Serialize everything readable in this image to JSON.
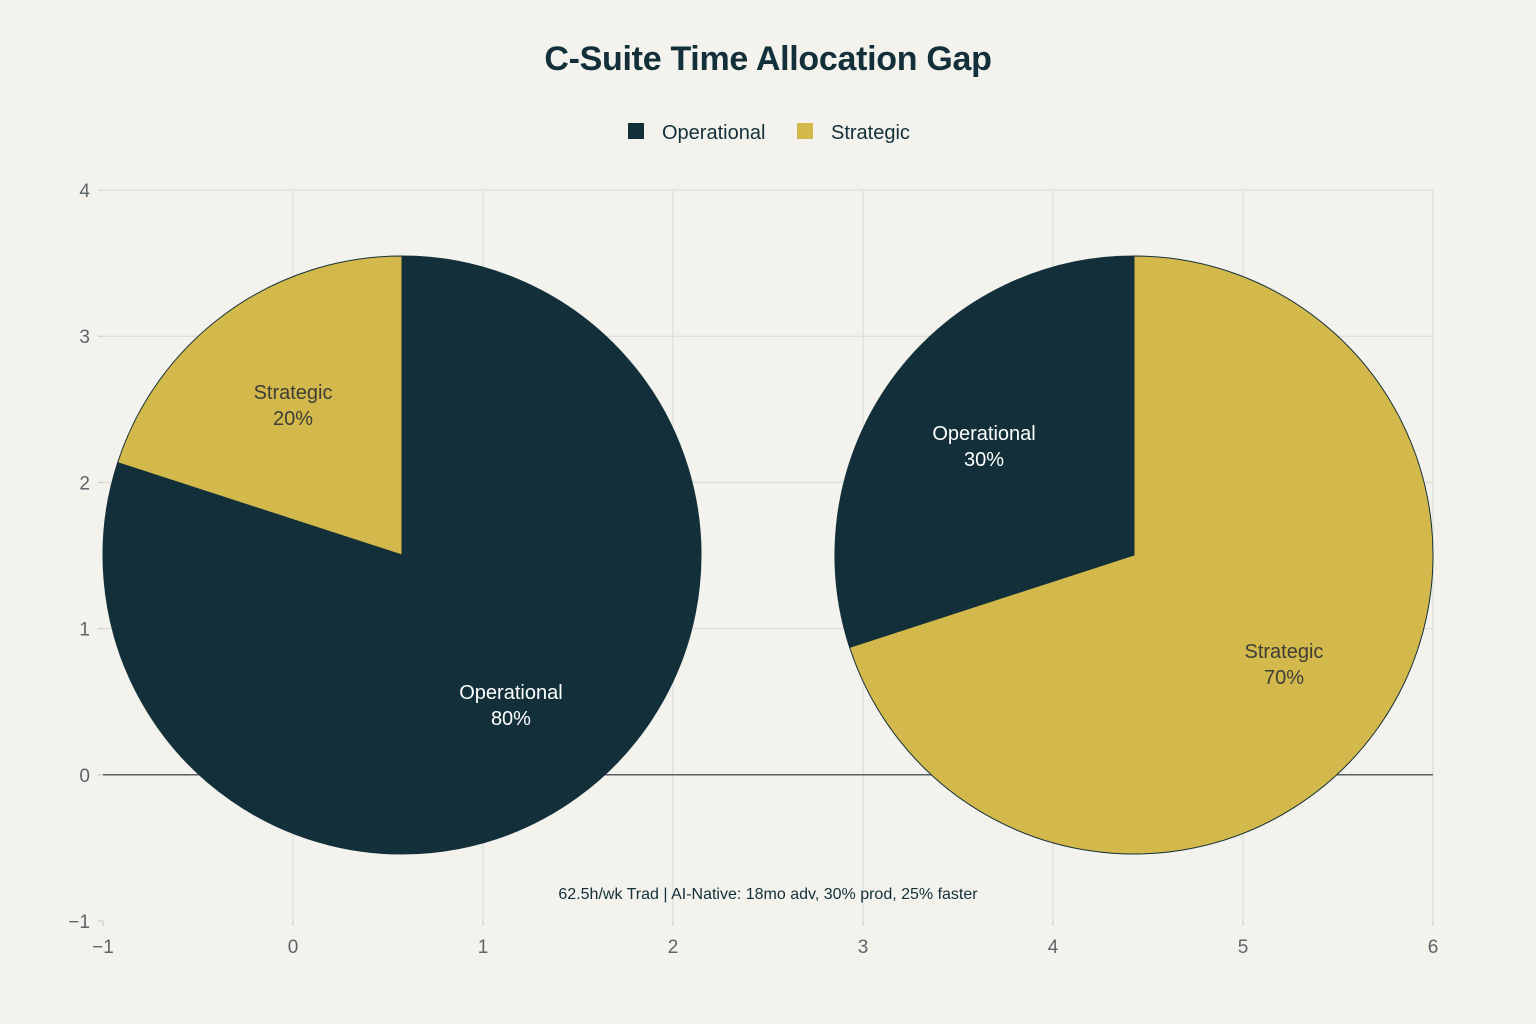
{
  "chart_data": {
    "type": "pie",
    "title": "C-Suite Time Allocation Gap",
    "legend": {
      "placement": "top-center",
      "entries": [
        {
          "label": "Operational",
          "color": "#13303a"
        },
        {
          "label": "Strategic",
          "color": "#d3b94b"
        }
      ]
    },
    "pies": [
      {
        "slices": [
          {
            "label": "Operational",
            "value": 80,
            "text": "80%",
            "color": "#13303a"
          },
          {
            "label": "Strategic",
            "value": 20,
            "text": "20%",
            "color": "#d3b94b"
          }
        ]
      },
      {
        "slices": [
          {
            "label": "Operational",
            "value": 30,
            "text": "30%",
            "color": "#13303a"
          },
          {
            "label": "Strategic",
            "value": 70,
            "text": "70%",
            "color": "#d3b94b"
          }
        ]
      }
    ],
    "xlim": [
      -1,
      6
    ],
    "ylim": [
      -1,
      4
    ],
    "x_ticks": [
      "−1",
      "0",
      "1",
      "2",
      "3",
      "4",
      "5",
      "6"
    ],
    "y_ticks": [
      "−1",
      "0",
      "1",
      "2",
      "3",
      "4"
    ],
    "grid": true,
    "annotation": "62.5h/wk Trad | AI-Native: 18mo adv, 30% prod, 25% faster"
  }
}
